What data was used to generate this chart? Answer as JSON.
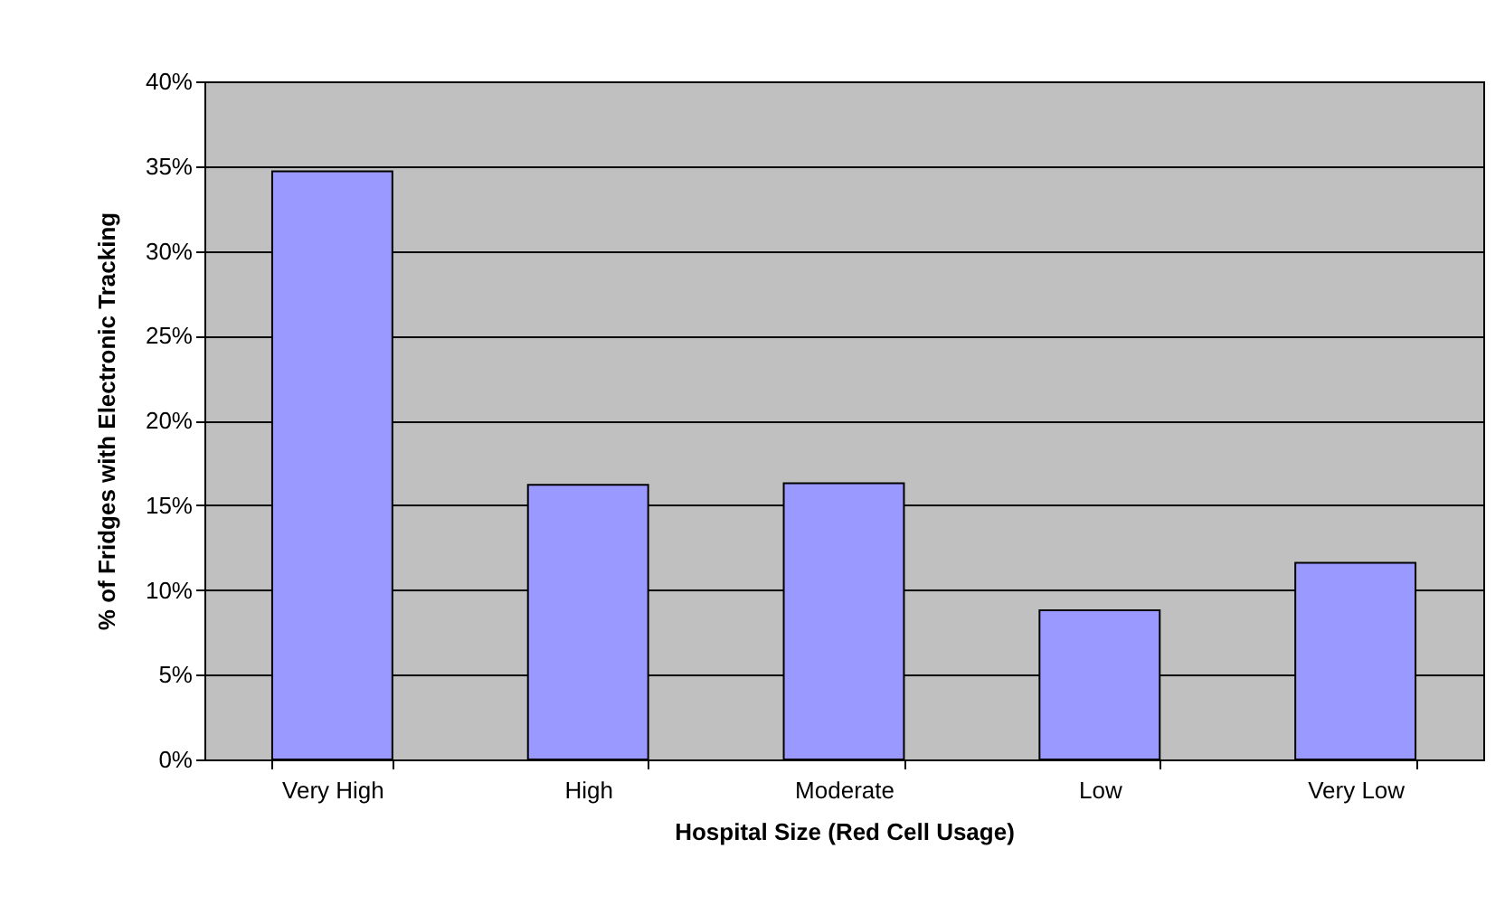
{
  "chart_data": {
    "type": "bar",
    "xlabel": "Hospital Size (Red Cell Usage)",
    "ylabel": "% of Fridges with Electronic Tracking",
    "categories": [
      "Very High",
      "High",
      "Moderate",
      "Low",
      "Very Low"
    ],
    "series": [
      {
        "color": "#9999ff",
        "values": [
          34.7,
          16.2,
          16.3,
          8.8,
          11.6
        ]
      }
    ],
    "ylim": [
      0,
      40
    ],
    "yticks": [
      {
        "value": 0,
        "label": "0%"
      },
      {
        "value": 5,
        "label": "5%"
      },
      {
        "value": 10,
        "label": "10%"
      },
      {
        "value": 15,
        "label": "15%"
      },
      {
        "value": 20,
        "label": "20%"
      },
      {
        "value": 25,
        "label": "25%"
      },
      {
        "value": 30,
        "label": "30%"
      },
      {
        "value": 35,
        "label": "35%"
      },
      {
        "value": 40,
        "label": "40%"
      }
    ],
    "grid": "y",
    "legend": false
  }
}
